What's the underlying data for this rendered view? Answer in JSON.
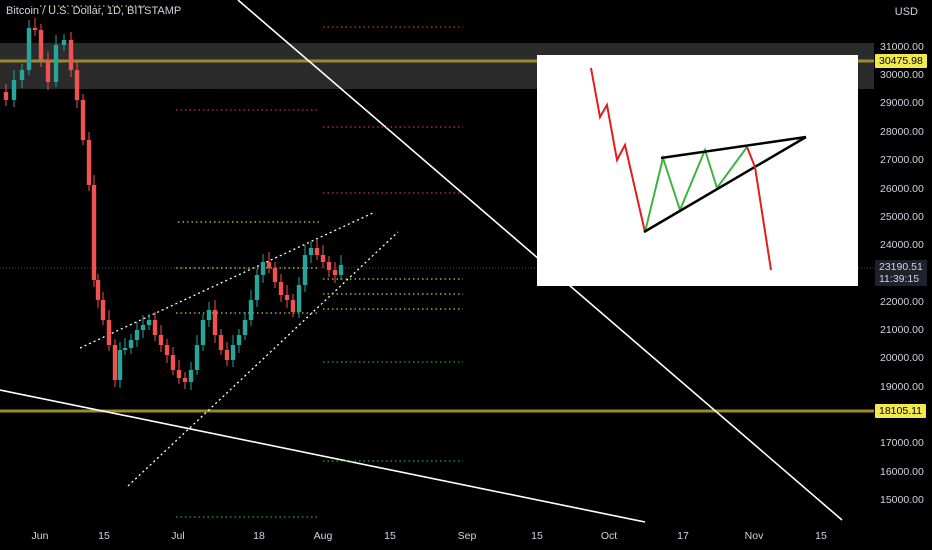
{
  "chart_title": "Bitcoin / U.S. Dollar, 1D, BITSTAMP",
  "currency": "USD",
  "y_axis_labels": [
    "31000.00",
    "30000.00",
    "29000.00",
    "28000.00",
    "27000.00",
    "26000.00",
    "25000.00",
    "24000.00",
    "22000.00",
    "21000.00",
    "20000.00",
    "19000.00",
    "17000.00",
    "16000.00",
    "15000.00"
  ],
  "x_axis_labels": [
    "Jun",
    "15",
    "Jul",
    "18",
    "Aug",
    "15",
    "Sep",
    "15",
    "Oct",
    "17",
    "Nov",
    "15"
  ],
  "price_badges": {
    "resistance": "30475.98",
    "support": "18105.11",
    "last_price": "23190.51",
    "countdown": "11:39:15"
  },
  "colors": {
    "up": "#26a69a",
    "down": "#ef5350",
    "level_line": "#9b8b2e",
    "badge": "#f2e94e"
  },
  "inset_pattern": {
    "name": "rising wedge",
    "colors": {
      "decline": "#e11d1d",
      "wedge": "#3db43d",
      "lines": "#000000"
    }
  }
}
